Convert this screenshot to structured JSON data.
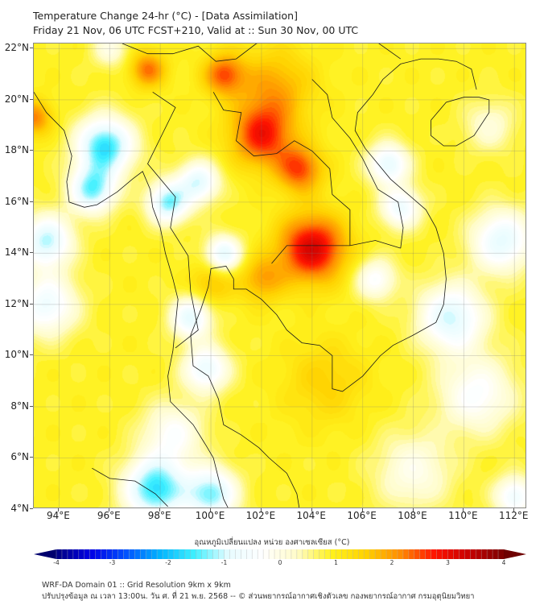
{
  "header": {
    "title_line1": "Temperature Change 24-hr (°C) - [Data Assimilation]",
    "title_line2": "Friday 21 Nov, 06 UTC FCST+210, Valid at :: Sun 30 Nov, 00 UTC"
  },
  "map": {
    "lon_range": [
      93,
      112.5
    ],
    "lat_range": [
      4,
      22.2
    ],
    "lat_ticks": [
      "22°N",
      "20°N",
      "18°N",
      "16°N",
      "14°N",
      "12°N",
      "10°N",
      "8°N",
      "6°N",
      "4°N"
    ],
    "lat_values": [
      22,
      20,
      18,
      16,
      14,
      12,
      10,
      8,
      6,
      4
    ],
    "lon_ticks": [
      "94°E",
      "96°E",
      "98°E",
      "100°E",
      "102°E",
      "104°E",
      "106°E",
      "108°E",
      "110°E",
      "112°E"
    ],
    "lon_values": [
      94,
      96,
      98,
      100,
      102,
      104,
      106,
      108,
      110,
      112
    ],
    "base_value": 0.9,
    "anomalies": [
      {
        "lon": 104.0,
        "lat": 14.2,
        "value": 2.3,
        "spread": 1.3
      },
      {
        "lon": 102.0,
        "lat": 18.6,
        "value": 1.8,
        "spread": 1.2
      },
      {
        "lon": 103.5,
        "lat": 17.3,
        "value": 1.6,
        "spread": 0.9
      },
      {
        "lon": 100.5,
        "lat": 21.0,
        "value": 1.5,
        "spread": 0.8
      },
      {
        "lon": 97.5,
        "lat": 21.2,
        "value": 1.4,
        "spread": 0.7
      },
      {
        "lon": 102.5,
        "lat": 20.5,
        "value": 1.0,
        "spread": 1.5
      },
      {
        "lon": 93.0,
        "lat": 19.3,
        "value": 1.3,
        "spread": 0.7
      },
      {
        "lon": 102.0,
        "lat": 13.0,
        "value": 1.0,
        "spread": 0.9
      },
      {
        "lon": 95.8,
        "lat": 18.2,
        "value": -2.6,
        "spread": 1.1
      },
      {
        "lon": 95.3,
        "lat": 16.5,
        "value": -2.2,
        "spread": 0.9
      },
      {
        "lon": 98.3,
        "lat": 16.0,
        "value": -2.2,
        "spread": 0.8
      },
      {
        "lon": 99.5,
        "lat": 16.8,
        "value": -1.8,
        "spread": 0.8
      },
      {
        "lon": 100.5,
        "lat": 14.0,
        "value": -1.8,
        "spread": 0.7
      },
      {
        "lon": 93.5,
        "lat": 14.5,
        "value": -2.0,
        "spread": 1.0
      },
      {
        "lon": 93.5,
        "lat": 12.0,
        "value": -1.6,
        "spread": 1.2
      },
      {
        "lon": 99.2,
        "lat": 11.5,
        "value": -1.8,
        "spread": 0.8
      },
      {
        "lon": 99.8,
        "lat": 9.5,
        "value": -1.7,
        "spread": 0.9
      },
      {
        "lon": 97.8,
        "lat": 4.8,
        "value": -2.6,
        "spread": 1.2
      },
      {
        "lon": 100.0,
        "lat": 4.6,
        "value": -2.2,
        "spread": 1.0
      },
      {
        "lon": 98.5,
        "lat": 7.0,
        "value": -1.2,
        "spread": 1.2
      },
      {
        "lon": 107.0,
        "lat": 17.5,
        "value": -1.8,
        "spread": 0.8
      },
      {
        "lon": 107.5,
        "lat": 15.8,
        "value": -1.6,
        "spread": 0.8
      },
      {
        "lon": 106.5,
        "lat": 13.0,
        "value": -1.3,
        "spread": 0.8
      },
      {
        "lon": 109.5,
        "lat": 11.5,
        "value": -1.9,
        "spread": 1.3
      },
      {
        "lon": 111.5,
        "lat": 14.5,
        "value": -1.8,
        "spread": 1.2
      },
      {
        "lon": 110.5,
        "lat": 8.5,
        "value": -1.3,
        "spread": 1.5
      },
      {
        "lon": 111.0,
        "lat": 19.0,
        "value": -0.8,
        "spread": 1.0
      },
      {
        "lon": 108.0,
        "lat": 5.5,
        "value": -1.0,
        "spread": 1.5
      },
      {
        "lon": 112.0,
        "lat": 4.5,
        "value": -1.6,
        "spread": 0.8
      },
      {
        "lon": 96.0,
        "lat": 22.0,
        "value": -0.9,
        "spread": 0.7
      },
      {
        "lon": 104.5,
        "lat": 9.0,
        "value": 0.6,
        "spread": 1.6
      },
      {
        "lon": 100.0,
        "lat": 12.8,
        "value": 0.8,
        "spread": 0.8
      }
    ]
  },
  "colorbar": {
    "label": "อุณหภูมิเปลี่ยนแปลง หน่วย องศาเซลเซียส (°C)",
    "min": -4,
    "max": 4,
    "tick_labels": [
      "-4",
      "-3",
      "-2",
      "-1",
      "0",
      "1",
      "2",
      "3",
      "4"
    ],
    "tick_values": [
      -4,
      -3,
      -2,
      -1,
      0,
      1,
      2,
      3,
      4
    ],
    "colors": {
      "under": "#00006e",
      "stops": [
        "#000080",
        "#0000e6",
        "#0050ff",
        "#00b4ff",
        "#3ef0ff",
        "#e8fcff",
        "#ffffff",
        "#fffcc8",
        "#fff21e",
        "#ffd200",
        "#ff8c00",
        "#ff1400",
        "#c80000",
        "#7a0000"
      ],
      "over": "#6e0000"
    }
  },
  "footer": {
    "line1": "WRF-DA Domain 01 :: Grid Resolution 9km x 9km",
    "line2": "ปรับปรุงข้อมูล ณ เวลา 13:00น. วัน ศ. ที่ 21 พ.ย. 2568 -- © ส่วนพยากรณ์อากาศเชิงตัวเลข กองพยากรณ์อากาศ กรมอุตุนิยมวิทยา"
  }
}
